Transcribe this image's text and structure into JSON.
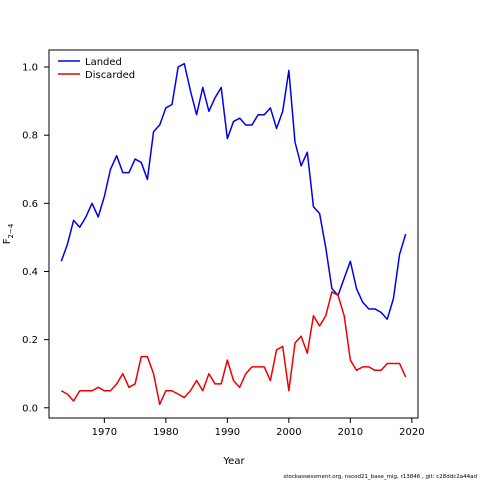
{
  "chart_data": {
    "type": "line",
    "xlabel": "Year",
    "ylabel": "F",
    "ylabel_subscript": "2−4",
    "xlim": [
      1961,
      2021
    ],
    "ylim": [
      -0.03,
      1.05
    ],
    "x_ticks": [
      1970,
      1980,
      1990,
      2000,
      2010,
      2020
    ],
    "y_ticks": [
      0.0,
      0.2,
      0.4,
      0.6,
      0.8,
      1.0
    ],
    "x_tick_labels": [
      "1970",
      "1980",
      "1990",
      "2000",
      "2010",
      "2020"
    ],
    "y_tick_labels": [
      "0.0",
      "0.2",
      "0.4",
      "0.6",
      "0.8",
      "1.0"
    ],
    "grid": false,
    "legend_position": "top-left",
    "x": [
      1963,
      1964,
      1965,
      1966,
      1967,
      1968,
      1969,
      1970,
      1971,
      1972,
      1973,
      1974,
      1975,
      1976,
      1977,
      1978,
      1979,
      1980,
      1981,
      1982,
      1983,
      1984,
      1985,
      1986,
      1987,
      1988,
      1989,
      1990,
      1991,
      1992,
      1993,
      1994,
      1995,
      1996,
      1997,
      1998,
      1999,
      2000,
      2001,
      2002,
      2003,
      2004,
      2005,
      2006,
      2007,
      2008,
      2009,
      2010,
      2011,
      2012,
      2013,
      2014,
      2015,
      2016,
      2017,
      2018,
      2019
    ],
    "series": [
      {
        "name": "Landed",
        "color": "#0000EE",
        "values": [
          0.43,
          0.48,
          0.55,
          0.53,
          0.56,
          0.6,
          0.56,
          0.62,
          0.7,
          0.74,
          0.69,
          0.69,
          0.73,
          0.72,
          0.67,
          0.81,
          0.83,
          0.88,
          0.89,
          1.0,
          1.01,
          0.93,
          0.86,
          0.94,
          0.87,
          0.91,
          0.94,
          0.79,
          0.84,
          0.85,
          0.83,
          0.83,
          0.86,
          0.86,
          0.88,
          0.82,
          0.87,
          0.99,
          0.78,
          0.71,
          0.75,
          0.59,
          0.57,
          0.47,
          0.35,
          0.33,
          0.38,
          0.43,
          0.35,
          0.31,
          0.29,
          0.29,
          0.28,
          0.26,
          0.32,
          0.45,
          0.51
        ]
      },
      {
        "name": "Discarded",
        "color": "#EE0000",
        "values": [
          0.05,
          0.04,
          0.02,
          0.05,
          0.05,
          0.05,
          0.06,
          0.05,
          0.05,
          0.07,
          0.1,
          0.06,
          0.07,
          0.15,
          0.15,
          0.1,
          0.01,
          0.05,
          0.05,
          0.04,
          0.03,
          0.05,
          0.08,
          0.05,
          0.1,
          0.07,
          0.07,
          0.14,
          0.08,
          0.06,
          0.1,
          0.12,
          0.12,
          0.12,
          0.08,
          0.17,
          0.18,
          0.05,
          0.19,
          0.21,
          0.16,
          0.27,
          0.24,
          0.27,
          0.34,
          0.33,
          0.27,
          0.14,
          0.11,
          0.12,
          0.12,
          0.11,
          0.11,
          0.13,
          0.13,
          0.13,
          0.09
        ]
      }
    ]
  },
  "footer_text": "stockassessment.org, nscod21_base_mig, r13846 , git: c28ddc2a44ad"
}
